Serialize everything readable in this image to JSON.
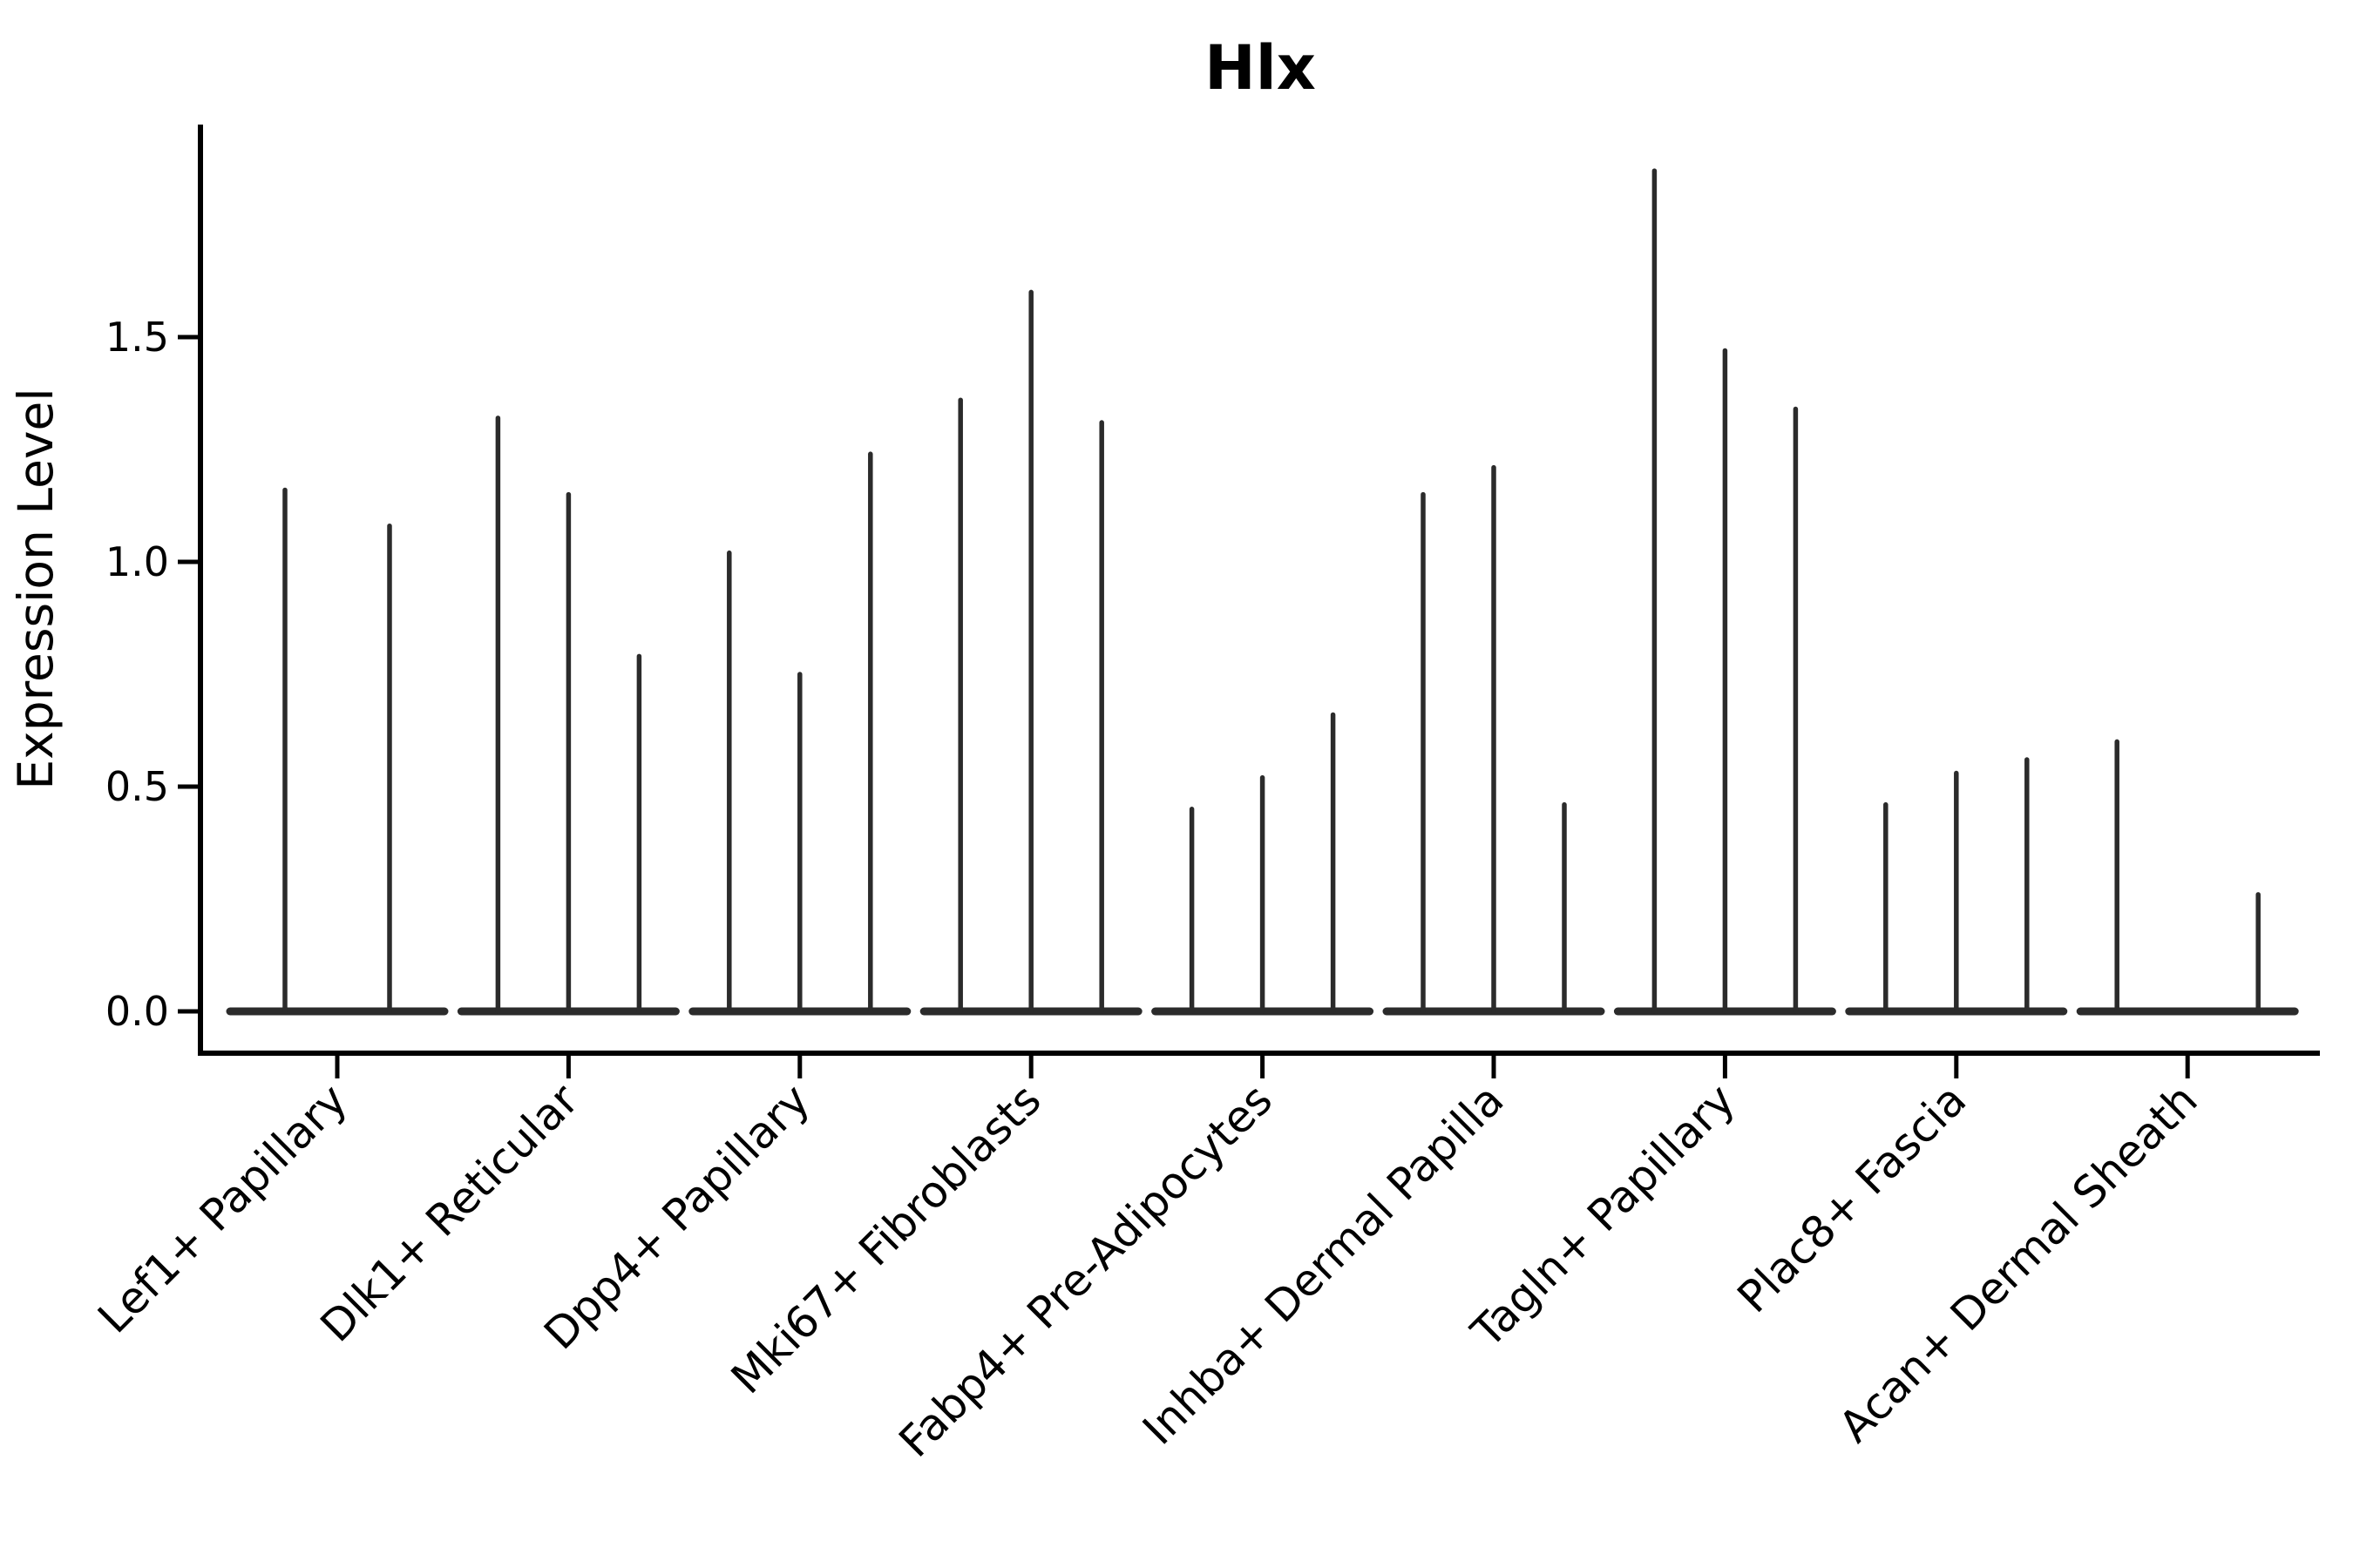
{
  "page": {
    "background_color": "#ffffff",
    "text_color": "#000000"
  },
  "chart_data": {
    "type": "violin",
    "title": "Hlx",
    "ylabel": "Expression Level",
    "xlabel": "",
    "ylim": [
      0,
      1.97
    ],
    "yticks": [
      {
        "value": 0.0,
        "label": "0.0"
      },
      {
        "value": 0.5,
        "label": "0.5"
      },
      {
        "value": 1.0,
        "label": "1.0"
      },
      {
        "value": 1.5,
        "label": "1.5"
      }
    ],
    "grid": false,
    "legend": "none",
    "violin_color": "#2b2b2b",
    "axis_color": "#000000",
    "groups": [
      {
        "label": "Lef1+ Papillary",
        "spikes": [
          {
            "offset": -60,
            "value": 1.16
          },
          {
            "offset": 60,
            "value": 1.08
          }
        ]
      },
      {
        "label": "Dlk1+ Reticular",
        "spikes": [
          {
            "offset": -81,
            "value": 1.32
          },
          {
            "offset": 0,
            "value": 1.15
          },
          {
            "offset": 81,
            "value": 0.79
          }
        ]
      },
      {
        "label": "Dpp4+ Papillary",
        "spikes": [
          {
            "offset": -81,
            "value": 1.02
          },
          {
            "offset": 0,
            "value": 0.75
          },
          {
            "offset": 81,
            "value": 1.24
          }
        ]
      },
      {
        "label": "Mki67+ Fibroblasts",
        "spikes": [
          {
            "offset": -81,
            "value": 1.36
          },
          {
            "offset": 0,
            "value": 1.6
          },
          {
            "offset": 81,
            "value": 1.31
          }
        ]
      },
      {
        "label": "Fabp4+ Pre-Adipocytes",
        "spikes": [
          {
            "offset": -81,
            "value": 0.45
          },
          {
            "offset": 0,
            "value": 0.52
          },
          {
            "offset": 81,
            "value": 0.66
          }
        ]
      },
      {
        "label": "Inhba+ Dermal Papilla",
        "spikes": [
          {
            "offset": -81,
            "value": 1.15
          },
          {
            "offset": 0,
            "value": 1.21
          },
          {
            "offset": 81,
            "value": 0.46
          }
        ]
      },
      {
        "label": "Tagln+ Papillary",
        "spikes": [
          {
            "offset": -81,
            "value": 1.87
          },
          {
            "offset": 0,
            "value": 1.47
          },
          {
            "offset": 81,
            "value": 1.34
          }
        ]
      },
      {
        "label": "Plac8+ Fascia",
        "spikes": [
          {
            "offset": -81,
            "value": 0.46
          },
          {
            "offset": 0,
            "value": 0.53
          },
          {
            "offset": 81,
            "value": 0.56
          }
        ]
      },
      {
        "label": "Acan+ Dermal Sheath",
        "spikes": [
          {
            "offset": -81,
            "value": 0.6
          },
          {
            "offset": 81,
            "value": 0.26
          }
        ]
      }
    ]
  }
}
